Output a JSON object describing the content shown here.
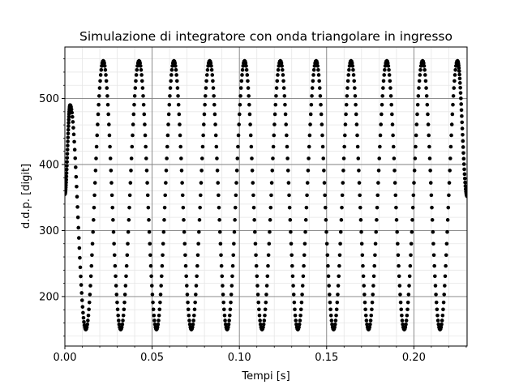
{
  "chart_data": {
    "type": "scatter",
    "title": "Simulazione di integratore con onda triangolare in ingresso",
    "xlabel": "Tempi [s]",
    "ylabel": "d.d.p. [digit]",
    "xlim": [
      0.0,
      0.2305
    ],
    "ylim": [
      125,
      578
    ],
    "x_ticks": [
      0.0,
      0.05,
      0.1,
      0.15,
      0.2
    ],
    "x_tick_labels": [
      "0.00",
      "0.05",
      "0.10",
      "0.15",
      "0.20"
    ],
    "y_ticks": [
      200,
      300,
      400,
      500
    ],
    "y_tick_labels": [
      "200",
      "300",
      "400",
      "500"
    ],
    "grid": "major and minor",
    "marker": "dot",
    "color": "#000000",
    "series": [
      {
        "x": [
          0.0,
          0.003,
          0.012,
          0.022,
          0.032,
          0.0425,
          0.0525,
          0.0625,
          0.0725,
          0.083,
          0.093,
          0.103,
          0.113,
          0.1235,
          0.1335,
          0.144,
          0.154,
          0.164,
          0.174,
          0.1845,
          0.1945,
          0.205,
          0.215,
          0.225,
          0.2305
        ],
        "values": [
          355,
          490,
          150,
          557,
          150,
          557,
          150,
          557,
          150,
          557,
          150,
          557,
          150,
          557,
          150,
          557,
          150,
          557,
          150,
          557,
          150,
          557,
          150,
          557,
          352
        ]
      }
    ]
  }
}
